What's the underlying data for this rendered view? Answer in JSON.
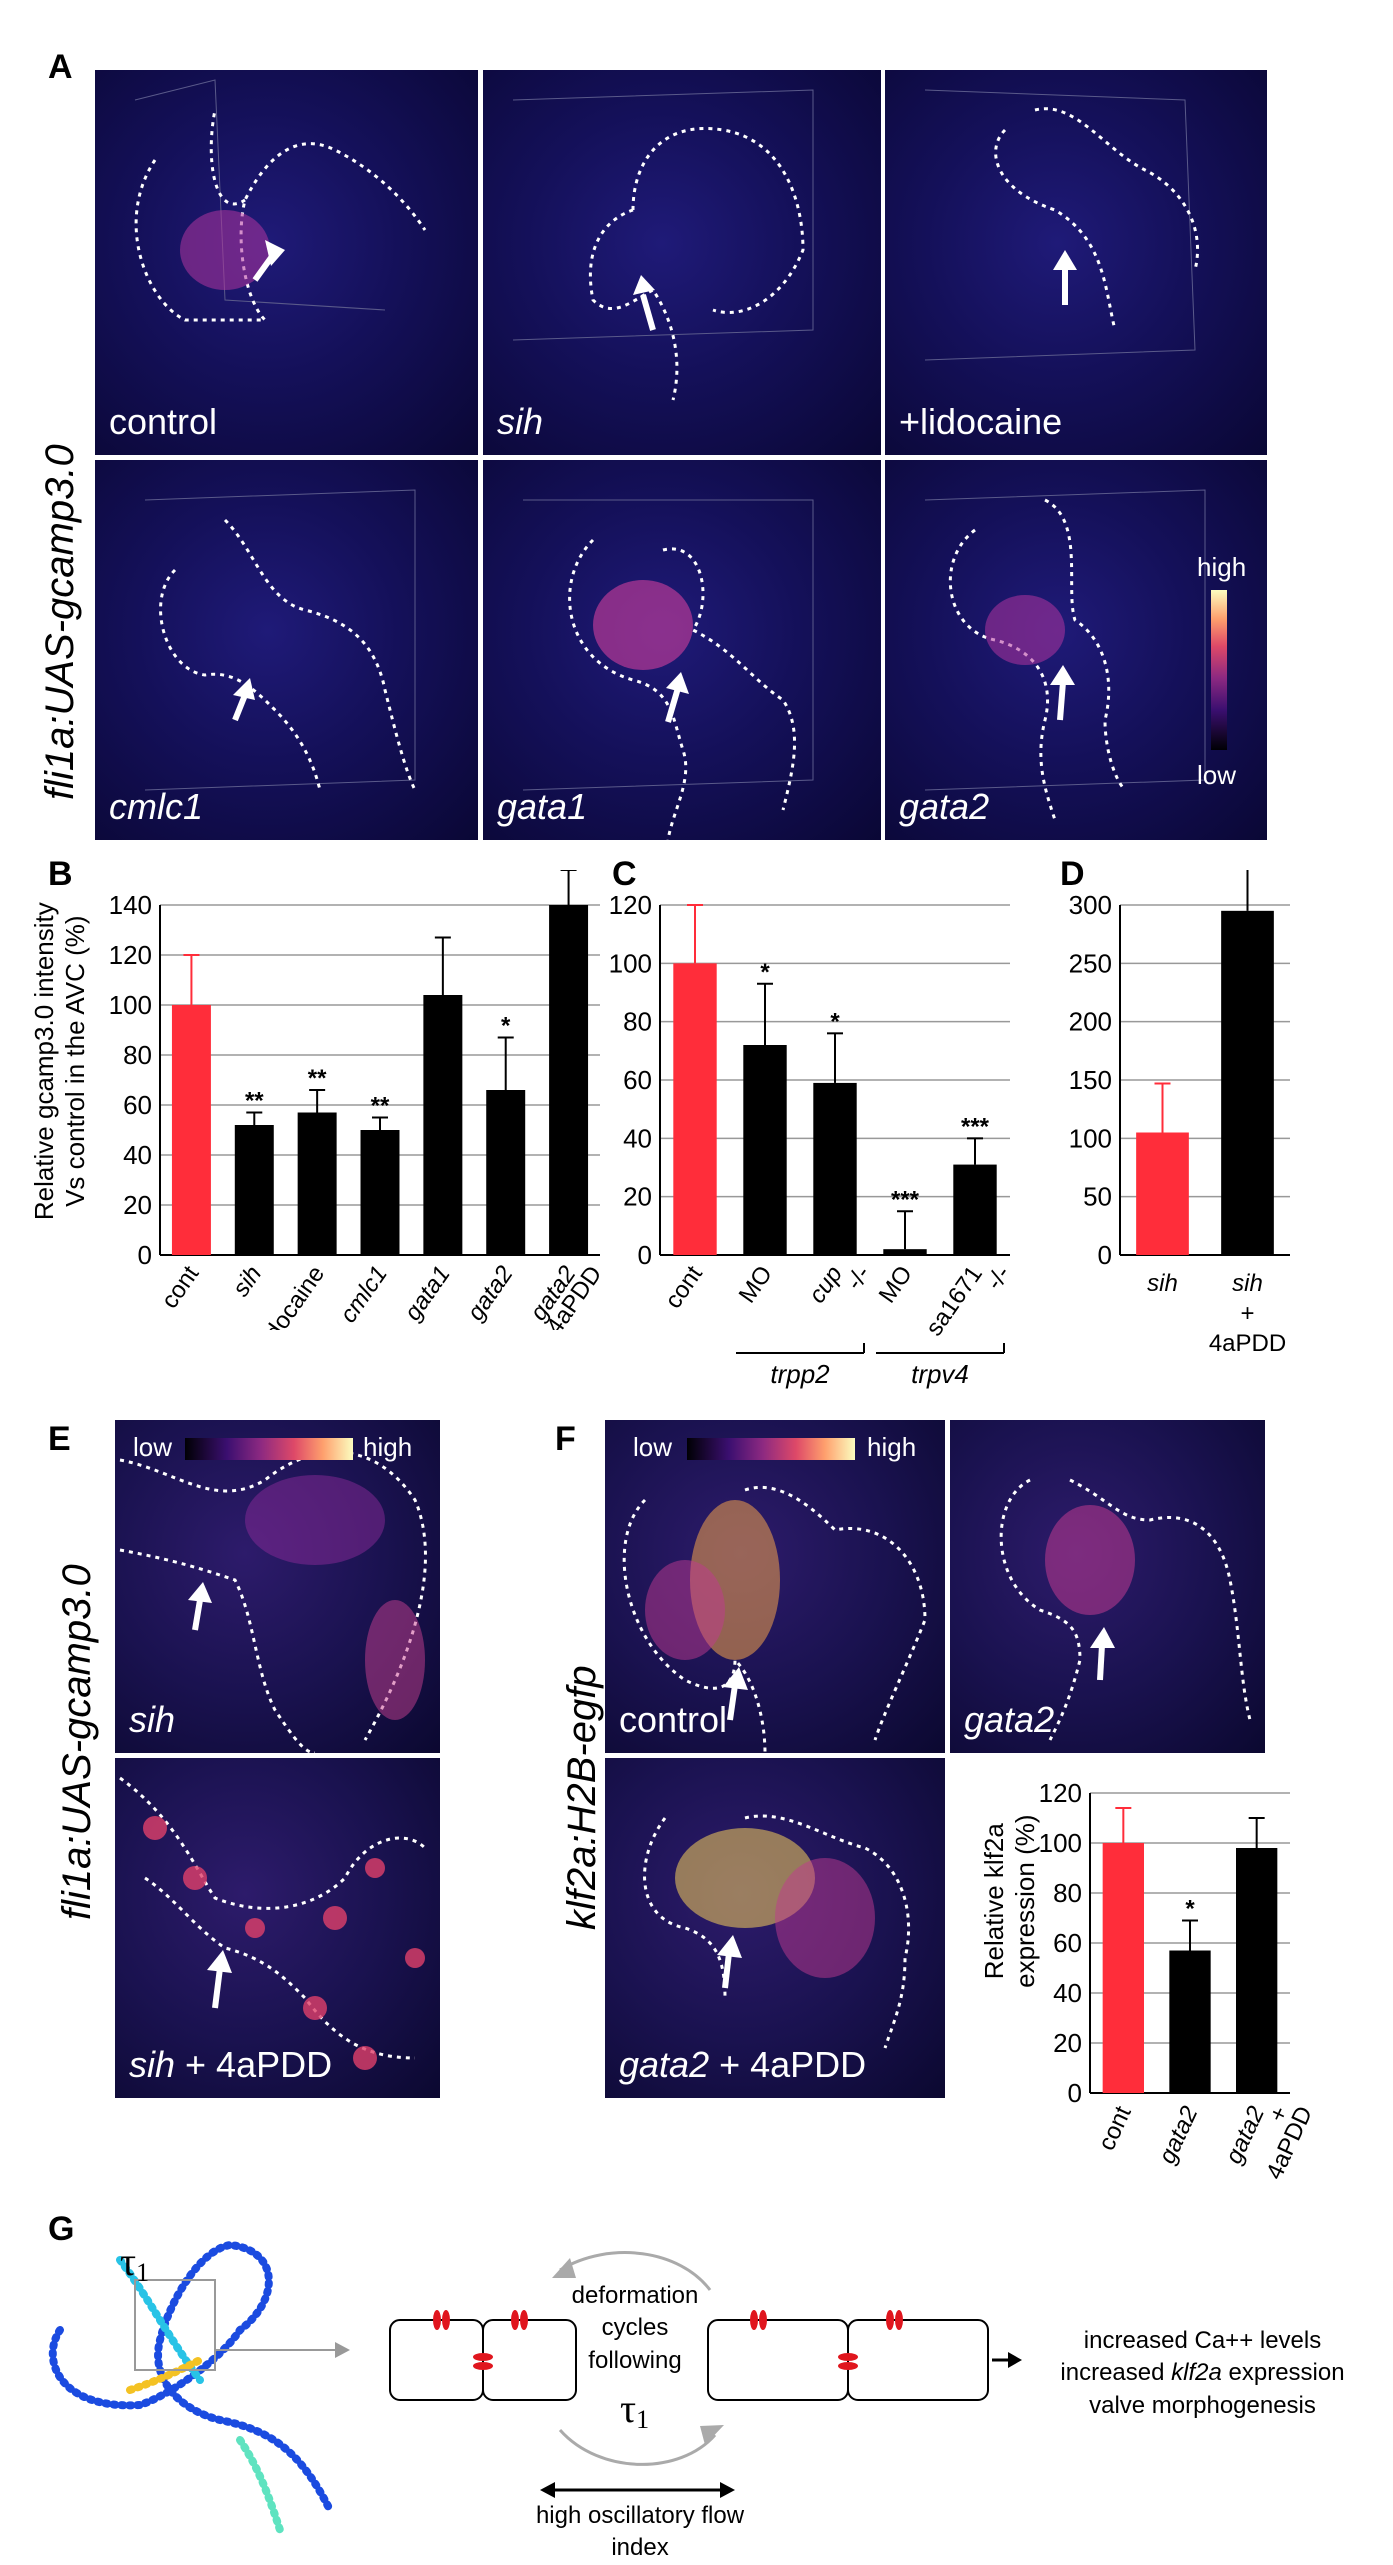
{
  "panels": {
    "a": "A",
    "b": "B",
    "c": "C",
    "d": "D",
    "e": "E",
    "f": "F",
    "g": "G"
  },
  "panelA": {
    "ylabel": "fli1a:UAS-gcamp3.0",
    "images": [
      "control",
      "sih",
      "+lidocaine",
      "cmlc1",
      "gata1",
      "gata2"
    ],
    "colorbar": {
      "high": "high",
      "low": "low"
    }
  },
  "panelE": {
    "ylabel": "fli1a:UAS-gcamp3.0",
    "colorbar": {
      "low": "low",
      "high": "high"
    },
    "images": [
      "sih",
      "sih + 4aPDD"
    ],
    "sih_plus_italic": "sih",
    "sih_plus_rest": " + 4aPDD"
  },
  "panelF": {
    "ylabel": "klf2a:H2B-egfp",
    "colorbar": {
      "low": "low",
      "high": "high"
    },
    "images": [
      "control",
      "gata2",
      "gata2 + 4aPDD"
    ],
    "gata2_plus_italic": "gata2",
    "gata2_plus_rest": " + 4aPDD"
  },
  "panelB_ylabel_line1": "Relative gcamp3.0 intensity",
  "panelB_ylabel_line2": "Vs control in the AVC (%)",
  "panelF_ylabel_line1": "Relative klf2a",
  "panelF_ylabel_line2": "expression (%)",
  "panelC_groups": {
    "trpp2": "trpp2",
    "trpv4": "trpv4"
  },
  "panelD_xlab": {
    "sih1": "sih",
    "sih2": "sih",
    "plus": "+",
    "drug": "4aPDD"
  },
  "panelG": {
    "tau": "τ",
    "tau_sub": "1",
    "middle_text": [
      "deformation",
      "cycles",
      "following"
    ],
    "bottom_text": [
      "high oscillatory flow",
      "index"
    ],
    "outcomes": [
      "increased Ca++ levels",
      "increased ",
      "klf2a",
      " expression",
      "valve morphogenesis"
    ]
  },
  "colors": {
    "control": "#ff2d3a",
    "treated": "#000000",
    "grid": "#999999",
    "channel": "#e0161e"
  },
  "chart_data": [
    {
      "id": "B",
      "type": "bar",
      "categories": [
        "cont",
        "sih",
        "lidocaine",
        "cmlc1",
        "gata1",
        "gata2",
        "gata2 +4aPDD"
      ],
      "values": [
        100,
        52,
        57,
        50,
        104,
        66,
        140
      ],
      "errors": [
        20,
        5,
        9,
        5,
        23,
        21,
        14
      ],
      "significance": [
        "",
        "**",
        "**",
        "**",
        "",
        "*",
        "*"
      ],
      "ylabel": "Relative gcamp3.0 intensity Vs control in the AVC (%)",
      "ylim": [
        0,
        140
      ],
      "yticks": [
        0,
        20,
        40,
        60,
        80,
        100,
        120,
        140
      ],
      "grid": true
    },
    {
      "id": "C",
      "type": "bar",
      "categories": [
        "cont",
        "MO",
        "cup -/-",
        "MO",
        "sa1671 -/-"
      ],
      "values": [
        100,
        72,
        59,
        2,
        31
      ],
      "errors": [
        20,
        21,
        17,
        13,
        9
      ],
      "significance": [
        "",
        "*",
        "*",
        "***",
        "***"
      ],
      "groups": [
        {
          "name": "trpp2",
          "members": [
            "MO",
            "cup -/-"
          ]
        },
        {
          "name": "trpv4",
          "members": [
            "MO",
            "sa1671 -/-"
          ]
        }
      ],
      "ylim": [
        0,
        120
      ],
      "yticks": [
        0,
        20,
        40,
        60,
        80,
        100,
        120
      ],
      "grid": true
    },
    {
      "id": "D",
      "type": "bar",
      "categories": [
        "sih",
        "sih + 4aPDD"
      ],
      "values": [
        105,
        295
      ],
      "errors": [
        42,
        40
      ],
      "significance": [
        "",
        "***"
      ],
      "ylim": [
        0,
        300
      ],
      "yticks": [
        0,
        50,
        100,
        150,
        200,
        250,
        300
      ],
      "grid": true
    },
    {
      "id": "F",
      "type": "bar",
      "categories": [
        "cont",
        "gata2",
        "gata2 + 4aPDD"
      ],
      "values": [
        100,
        57,
        98
      ],
      "errors": [
        14,
        12,
        12
      ],
      "significance": [
        "",
        "*",
        ""
      ],
      "ylabel": "Relative klf2a expression (%)",
      "ylim": [
        0,
        120
      ],
      "yticks": [
        0,
        20,
        40,
        60,
        80,
        100,
        120
      ],
      "grid": true
    }
  ]
}
